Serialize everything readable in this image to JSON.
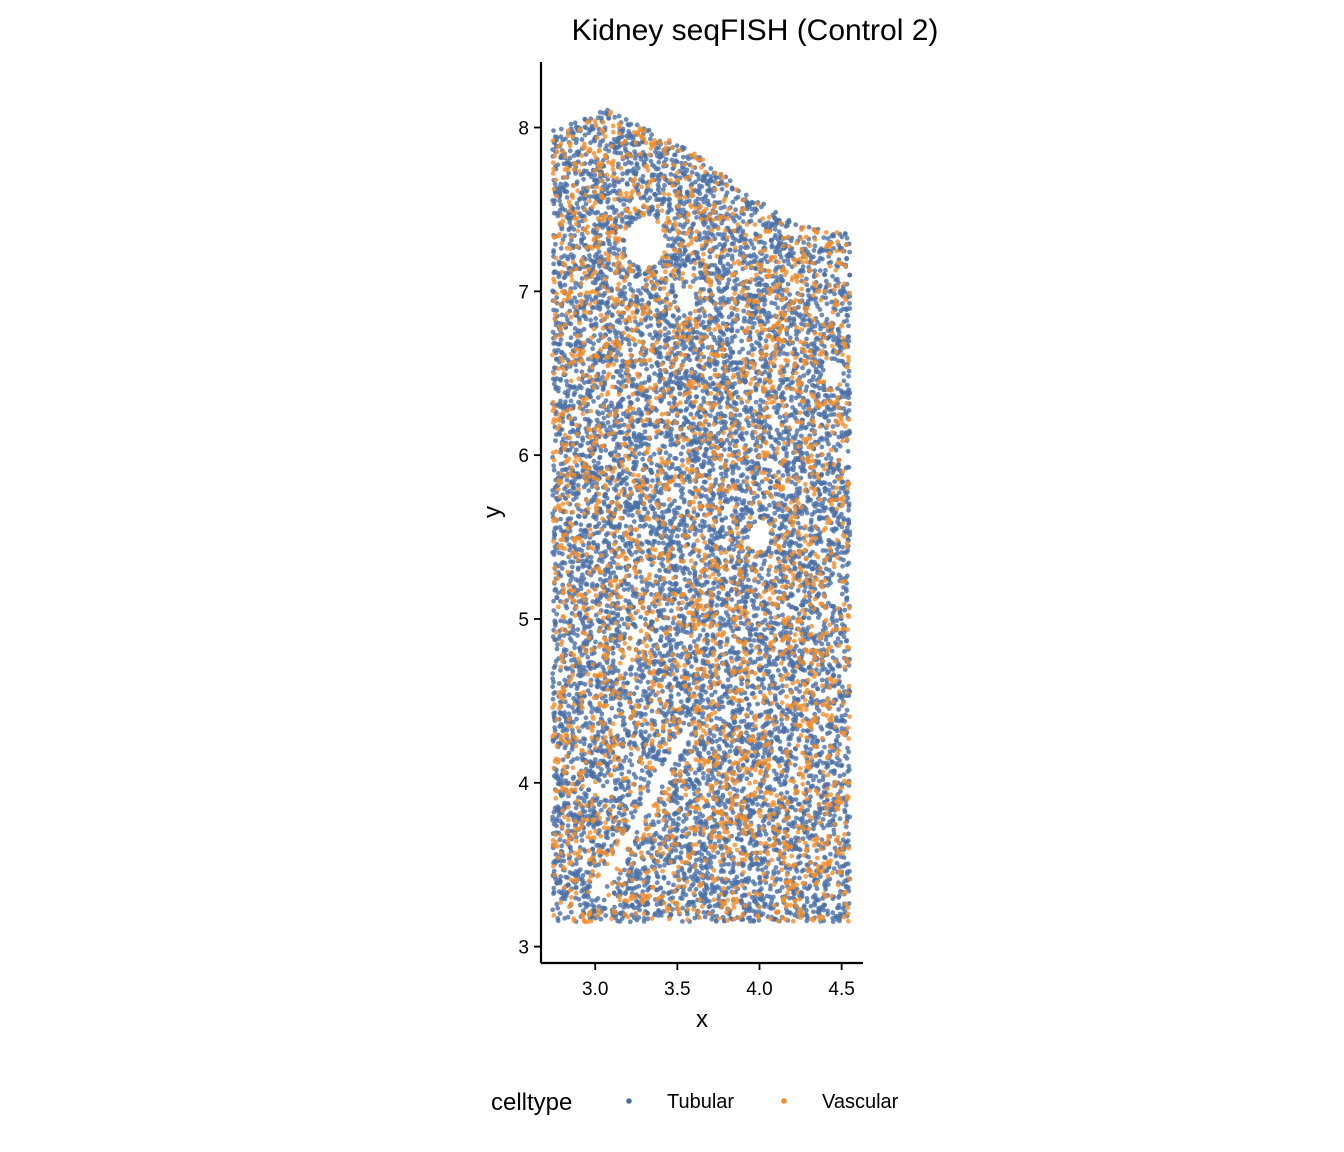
{
  "chart_data": {
    "type": "scatter",
    "title": "Kidney seqFISH (Control 2)",
    "xlabel": "x",
    "ylabel": "y",
    "xlim": [
      2.67,
      4.63
    ],
    "ylim": [
      2.9,
      8.4
    ],
    "x_ticks": [
      3.0,
      3.5,
      4.0,
      4.5
    ],
    "x_tick_labels": [
      "3.0",
      "3.5",
      "4.0",
      "4.5"
    ],
    "y_ticks": [
      3,
      4,
      5,
      6,
      7,
      8
    ],
    "y_tick_labels": [
      "3",
      "4",
      "5",
      "6",
      "7",
      "8"
    ],
    "grid": false,
    "legend": {
      "title": "celltype",
      "placement": "bottom",
      "entries": [
        {
          "name": "Tubular",
          "color": "#4a6fa5"
        },
        {
          "name": "Vascular",
          "color": "#f28e2b"
        }
      ]
    },
    "region": {
      "x_range": [
        2.74,
        4.55
      ],
      "y_range": [
        3.15,
        8.12
      ],
      "top_edge": [
        [
          2.74,
          7.98
        ],
        [
          3.0,
          8.08
        ],
        [
          3.05,
          8.12
        ],
        [
          3.3,
          8.0
        ],
        [
          3.6,
          7.85
        ],
        [
          3.9,
          7.62
        ],
        [
          4.2,
          7.42
        ],
        [
          4.35,
          7.38
        ],
        [
          4.55,
          7.35
        ]
      ],
      "holes": [
        {
          "x": 3.3,
          "y": 7.3,
          "r": 0.12
        },
        {
          "x": 3.55,
          "y": 6.95,
          "r": 0.06
        },
        {
          "x": 4.0,
          "y": 5.5,
          "r": 0.07
        },
        {
          "x": 4.45,
          "y": 6.5,
          "r": 0.06
        },
        {
          "x": 4.45,
          "y": 5.15,
          "r": 0.05
        }
      ]
    },
    "series": [
      {
        "name": "Tubular",
        "color": "#4a6fa5",
        "n_points": 9500
      },
      {
        "name": "Vascular",
        "color": "#f28e2b",
        "n_points": 3200
      }
    ]
  }
}
